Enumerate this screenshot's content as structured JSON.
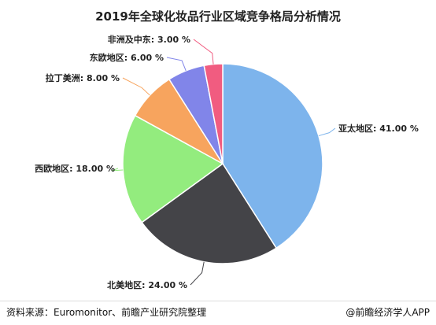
{
  "chart_data": {
    "type": "pie",
    "title": "2019年全球化妆品行业区域竞争格局分析情况",
    "start_angle_deg": 0,
    "direction": "clockwise",
    "slices": [
      {
        "label": "亚太地区",
        "value": 41.0,
        "display": "亚太地区: 41.00 %",
        "color": "#7db4ec"
      },
      {
        "label": "北美地区",
        "value": 24.0,
        "display": "北美地区: 24.00 %",
        "color": "#444448"
      },
      {
        "label": "西欧地区",
        "value": 18.0,
        "display": "西欧地区: 18.00 %",
        "color": "#93ec7e"
      },
      {
        "label": "拉丁美洲",
        "value": 8.0,
        "display": "拉丁美洲: 8.00 %",
        "color": "#f7a45e"
      },
      {
        "label": "东欧地区",
        "value": 6.0,
        "display": "东欧地区: 6.00 %",
        "color": "#8185e9"
      },
      {
        "label": "非洲及中东",
        "value": 3.0,
        "display": "非洲及中东: 3.00 %",
        "color": "#f15c80"
      }
    ]
  },
  "footer": {
    "source": "资料来源：Euromonitor、前瞻产业研究院整理",
    "credit": "@前瞻经济学人APP"
  }
}
